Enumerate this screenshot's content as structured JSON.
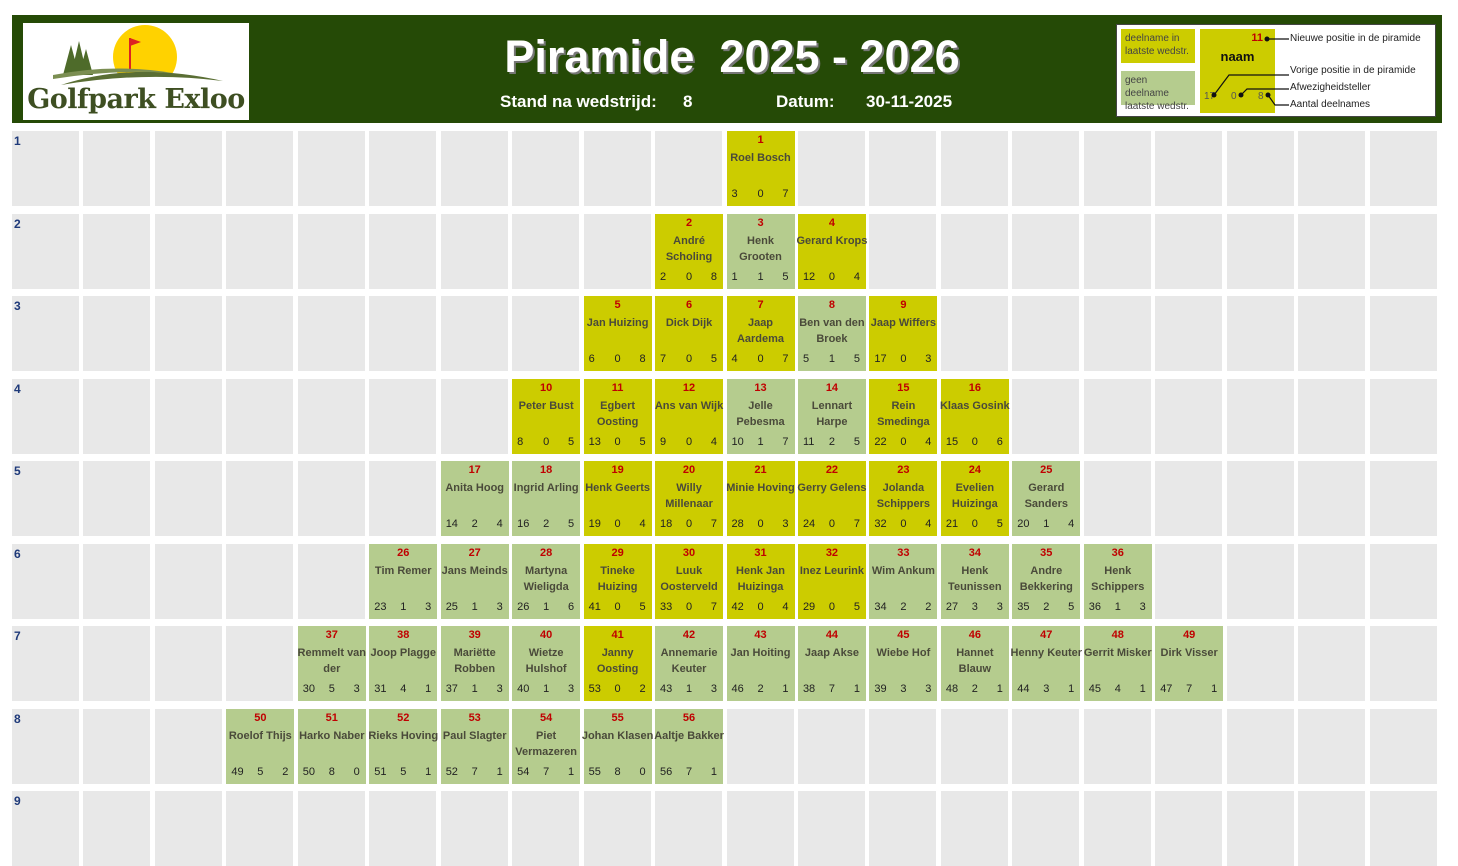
{
  "header": {
    "logo_text": "Golfpark Exloo",
    "title": "Piramide  2025 - 2026",
    "round_label": "Stand na wedstrijd:",
    "round_value": "8",
    "date_label": "Datum:",
    "date_value": "30-11-2025"
  },
  "legend": {
    "played": "deelname in laatste wedstr.",
    "not_played": "geen deelname laatste wedstr.",
    "sample_pos": "11",
    "sample_name": "naam",
    "sample_prev": "17",
    "sample_absence": "0",
    "sample_count": "8",
    "new_pos": "Nieuwe positie in de piramide",
    "prev_pos": "Vorige positie in de piramide",
    "absence": "Afwezigheidsteller",
    "count": "Aantal deelnames"
  },
  "colors": {
    "header": "#254a06",
    "played": "#cccc00",
    "not_played": "#b5cc8e",
    "empty": "#e8e8e8",
    "position": "#c00000",
    "row_number": "#1f3a7a"
  },
  "row_labels": [
    "1",
    "2",
    "3",
    "4",
    "5",
    "6",
    "7",
    "8",
    "9"
  ],
  "rows": [
    {
      "start_col": 10,
      "players": [
        {
          "pos": "1",
          "name": "Roel Bosch",
          "prev": "3",
          "absence": "0",
          "count": "7"
        }
      ]
    },
    {
      "start_col": 9,
      "players": [
        {
          "pos": "2",
          "name": "André Scholing",
          "prev": "2",
          "absence": "0",
          "count": "8"
        },
        {
          "pos": "3",
          "name": "Henk Grooten",
          "prev": "1",
          "absence": "1",
          "count": "5"
        },
        {
          "pos": "4",
          "name": "Gerard Krops",
          "prev": "12",
          "absence": "0",
          "count": "4"
        }
      ]
    },
    {
      "start_col": 8,
      "players": [
        {
          "pos": "5",
          "name": "Jan Huizing",
          "prev": "6",
          "absence": "0",
          "count": "8"
        },
        {
          "pos": "6",
          "name": "Dick Dijk",
          "prev": "7",
          "absence": "0",
          "count": "5"
        },
        {
          "pos": "7",
          "name": "Jaap Aardema",
          "prev": "4",
          "absence": "0",
          "count": "7"
        },
        {
          "pos": "8",
          "name": "Ben van den Broek",
          "prev": "5",
          "absence": "1",
          "count": "5"
        },
        {
          "pos": "9",
          "name": "Jaap Wiffers",
          "prev": "17",
          "absence": "0",
          "count": "3"
        }
      ]
    },
    {
      "start_col": 7,
      "players": [
        {
          "pos": "10",
          "name": "Peter Bust",
          "prev": "8",
          "absence": "0",
          "count": "5"
        },
        {
          "pos": "11",
          "name": "Egbert Oosting",
          "prev": "13",
          "absence": "0",
          "count": "5"
        },
        {
          "pos": "12",
          "name": "Ans van Wijk",
          "prev": "9",
          "absence": "0",
          "count": "4"
        },
        {
          "pos": "13",
          "name": "Jelle Pebesma",
          "prev": "10",
          "absence": "1",
          "count": "7"
        },
        {
          "pos": "14",
          "name": "Lennart Harpe",
          "prev": "11",
          "absence": "2",
          "count": "5"
        },
        {
          "pos": "15",
          "name": "Rein Smedinga",
          "prev": "22",
          "absence": "0",
          "count": "4"
        },
        {
          "pos": "16",
          "name": "Klaas Gosink",
          "prev": "15",
          "absence": "0",
          "count": "6"
        }
      ]
    },
    {
      "start_col": 6,
      "players": [
        {
          "pos": "17",
          "name": "Anita Hoog",
          "prev": "14",
          "absence": "2",
          "count": "4"
        },
        {
          "pos": "18",
          "name": "Ingrid Arling",
          "prev": "16",
          "absence": "2",
          "count": "5"
        },
        {
          "pos": "19",
          "name": "Henk Geerts",
          "prev": "19",
          "absence": "0",
          "count": "4"
        },
        {
          "pos": "20",
          "name": "Willy Millenaar",
          "prev": "18",
          "absence": "0",
          "count": "7"
        },
        {
          "pos": "21",
          "name": "Minie Hoving",
          "prev": "28",
          "absence": "0",
          "count": "3"
        },
        {
          "pos": "22",
          "name": "Gerry Gelens",
          "prev": "24",
          "absence": "0",
          "count": "7"
        },
        {
          "pos": "23",
          "name": "Jolanda Schippers",
          "prev": "32",
          "absence": "0",
          "count": "4"
        },
        {
          "pos": "24",
          "name": "Evelien Huizinga",
          "prev": "21",
          "absence": "0",
          "count": "5"
        },
        {
          "pos": "25",
          "name": "Gerard Sanders",
          "prev": "20",
          "absence": "1",
          "count": "4"
        }
      ]
    },
    {
      "start_col": 5,
      "players": [
        {
          "pos": "26",
          "name": "Tim Remer",
          "prev": "23",
          "absence": "1",
          "count": "3"
        },
        {
          "pos": "27",
          "name": "Jans Meinds",
          "prev": "25",
          "absence": "1",
          "count": "3"
        },
        {
          "pos": "28",
          "name": "Martyna Wieligda",
          "prev": "26",
          "absence": "1",
          "count": "6"
        },
        {
          "pos": "29",
          "name": "Tineke Huizing",
          "prev": "41",
          "absence": "0",
          "count": "5"
        },
        {
          "pos": "30",
          "name": "Luuk Oosterveld",
          "prev": "33",
          "absence": "0",
          "count": "7"
        },
        {
          "pos": "31",
          "name": "Henk Jan Huizinga",
          "prev": "42",
          "absence": "0",
          "count": "4"
        },
        {
          "pos": "32",
          "name": "Inez Leurink",
          "prev": "29",
          "absence": "0",
          "count": "5"
        },
        {
          "pos": "33",
          "name": "Wim Ankum",
          "prev": "34",
          "absence": "2",
          "count": "2"
        },
        {
          "pos": "34",
          "name": "Henk Teunissen",
          "prev": "27",
          "absence": "3",
          "count": "3"
        },
        {
          "pos": "35",
          "name": "Andre Bekkering",
          "prev": "35",
          "absence": "2",
          "count": "5"
        },
        {
          "pos": "36",
          "name": "Henk Schippers",
          "prev": "36",
          "absence": "1",
          "count": "3"
        }
      ]
    },
    {
      "start_col": 4,
      "players": [
        {
          "pos": "37",
          "name": "Remmelt van der",
          "prev": "30",
          "absence": "5",
          "count": "3"
        },
        {
          "pos": "38",
          "name": "Joop Plagge",
          "prev": "31",
          "absence": "4",
          "count": "1"
        },
        {
          "pos": "39",
          "name": "Mariëtte Robben",
          "prev": "37",
          "absence": "1",
          "count": "3"
        },
        {
          "pos": "40",
          "name": "Wietze Hulshof",
          "prev": "40",
          "absence": "1",
          "count": "3"
        },
        {
          "pos": "41",
          "name": "Janny Oosting",
          "prev": "53",
          "absence": "0",
          "count": "2"
        },
        {
          "pos": "42",
          "name": "Annemarie Keuter",
          "prev": "43",
          "absence": "1",
          "count": "3"
        },
        {
          "pos": "43",
          "name": "Jan Hoiting",
          "prev": "46",
          "absence": "2",
          "count": "1"
        },
        {
          "pos": "44",
          "name": "Jaap Akse",
          "prev": "38",
          "absence": "7",
          "count": "1"
        },
        {
          "pos": "45",
          "name": "Wiebe Hof",
          "prev": "39",
          "absence": "3",
          "count": "3"
        },
        {
          "pos": "46",
          "name": "Hannet Blauw",
          "prev": "48",
          "absence": "2",
          "count": "1"
        },
        {
          "pos": "47",
          "name": "Henny Keuter",
          "prev": "44",
          "absence": "3",
          "count": "1"
        },
        {
          "pos": "48",
          "name": "Gerrit Misker",
          "prev": "45",
          "absence": "4",
          "count": "1"
        },
        {
          "pos": "49",
          "name": "Dirk Visser",
          "prev": "47",
          "absence": "7",
          "count": "1"
        }
      ]
    },
    {
      "start_col": 3,
      "players": [
        {
          "pos": "50",
          "name": "Roelof Thijs",
          "prev": "49",
          "absence": "5",
          "count": "2"
        },
        {
          "pos": "51",
          "name": "Harko Naber",
          "prev": "50",
          "absence": "8",
          "count": "0"
        },
        {
          "pos": "52",
          "name": "Rieks Hoving",
          "prev": "51",
          "absence": "5",
          "count": "1"
        },
        {
          "pos": "53",
          "name": "Paul Slagter",
          "prev": "52",
          "absence": "7",
          "count": "1"
        },
        {
          "pos": "54",
          "name": "Piet Vermazeren",
          "prev": "54",
          "absence": "7",
          "count": "1"
        },
        {
          "pos": "55",
          "name": "Johan Klasen",
          "prev": "55",
          "absence": "8",
          "count": "0"
        },
        {
          "pos": "56",
          "name": "Aaltje Bakker",
          "prev": "56",
          "absence": "7",
          "count": "1"
        }
      ]
    },
    {
      "start_col": 0,
      "players": []
    }
  ]
}
